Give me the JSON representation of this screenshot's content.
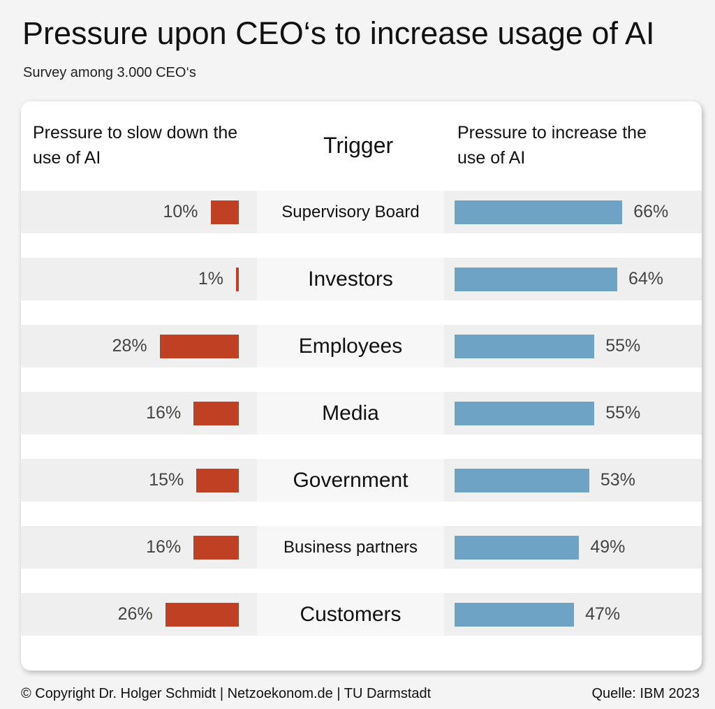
{
  "chart_data": {
    "type": "bar",
    "title": "Pressure upon CEO‘s to increase usage of AI",
    "subtitle": "Survey among 3.000 CEO‘s",
    "left_header": "Pressure to slow down the use of AI",
    "center_header": "Trigger",
    "right_header": "Pressure to increase the use of AI",
    "categories": [
      "Supervisory Board",
      "Investors",
      "Employees",
      "Media",
      "Government",
      "Business partners",
      "Customers"
    ],
    "series": [
      {
        "name": "Pressure to slow down the use of AI",
        "values": [
          10,
          1,
          28,
          16,
          15,
          16,
          26
        ],
        "labels": [
          "10%",
          "1%",
          "28%",
          "16%",
          "15%",
          "16%",
          "26%"
        ],
        "color": "#bf4022"
      },
      {
        "name": "Pressure to increase the use of AI",
        "values": [
          66,
          64,
          55,
          55,
          53,
          49,
          47
        ],
        "labels": [
          "66%",
          "64%",
          "55%",
          "55%",
          "53%",
          "49%",
          "47%"
        ],
        "color": "#6fa3c6"
      }
    ]
  },
  "footer": {
    "copyright": "© Copyright Dr. Holger Schmidt | Netzoekonom.de | TU Darmstadt",
    "source": "Quelle: IBM 2023"
  }
}
